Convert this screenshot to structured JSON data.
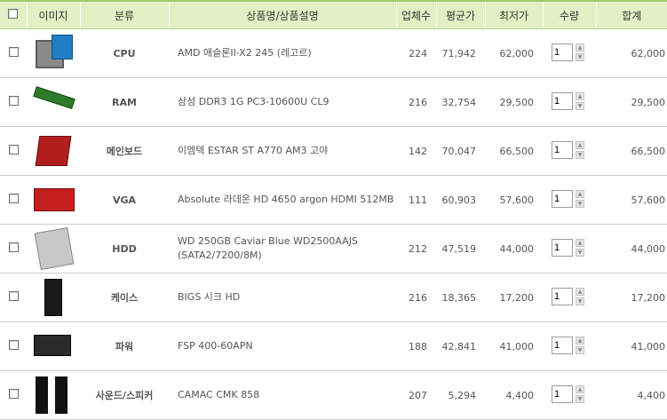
{
  "header": {
    "image": "이미지",
    "category": "분류",
    "product": "상품명/상품설명",
    "vendors": "업체수",
    "avg": "평균가",
    "lowest": "최저가",
    "qty": "수량",
    "total": "합계"
  },
  "rows": [
    {
      "category": "CPU",
      "name": "AMD 애슬론II-X2 245 (레고르)",
      "vendors": "224",
      "avg": "71,942",
      "lowest": "62,000",
      "qty": "1",
      "total": "62,000",
      "icon": "cpu-image"
    },
    {
      "category": "RAM",
      "name": "삼성 DDR3 1G PC3-10600U CL9",
      "vendors": "216",
      "avg": "32,754",
      "lowest": "29,500",
      "qty": "1",
      "total": "29,500",
      "icon": "ram-image"
    },
    {
      "category": "메인보드",
      "name": "이엠텍 ESTAR ST A770 AM3 고야",
      "vendors": "142",
      "avg": "70,047",
      "lowest": "66,500",
      "qty": "1",
      "total": "66,500",
      "icon": "mainboard-image"
    },
    {
      "category": "VGA",
      "name": "Absolute 라데온 HD 4650 argon HDMI 512MB",
      "vendors": "111",
      "avg": "60,903",
      "lowest": "57,600",
      "qty": "1",
      "total": "57,600",
      "icon": "vga-image"
    },
    {
      "category": "HDD",
      "name": "WD 250GB Caviar Blue WD2500AAJS (SATA2/7200/8M)",
      "vendors": "212",
      "avg": "47,519",
      "lowest": "44,000",
      "qty": "1",
      "total": "44,000",
      "icon": "hdd-image"
    },
    {
      "category": "케이스",
      "name": "BIGS 시크 HD",
      "vendors": "216",
      "avg": "18,365",
      "lowest": "17,200",
      "qty": "1",
      "total": "17,200",
      "icon": "case-image"
    },
    {
      "category": "파워",
      "name": "FSP 400-60APN",
      "vendors": "188",
      "avg": "42,841",
      "lowest": "41,000",
      "qty": "1",
      "total": "41,000",
      "icon": "psu-image"
    },
    {
      "category": "사운드/스피커",
      "name": "CAMAC CMK 858",
      "vendors": "207",
      "avg": "5,294",
      "lowest": "4,400",
      "qty": "1",
      "total": "4,400",
      "icon": "speaker-image"
    }
  ],
  "colors": {
    "header_bg": "#e3f0c4",
    "lowest_price": "#e8790b"
  }
}
